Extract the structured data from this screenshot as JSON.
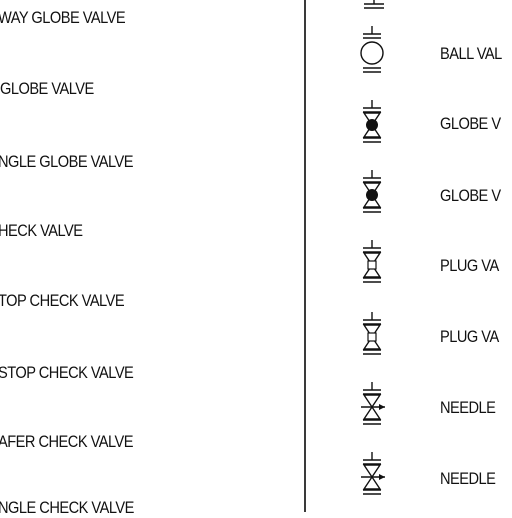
{
  "left_column": {
    "labels": [
      "WAY GLOBE VALVE",
      "GLOBE VALVE",
      "NGLE GLOBE VALVE",
      "HECK VALVE",
      "TOP CHECK VALVE",
      "STOP CHECK VALVE",
      "AFER CHECK VALVE",
      "NGLE CHECK VALVE"
    ]
  },
  "right_column": {
    "labels": [
      "BALL VAL",
      "GLOBE V",
      "GLOBE V",
      "PLUG VA",
      "PLUG VA",
      "NEEDLE",
      "NEEDLE"
    ],
    "symbols": [
      "ball-valve-icon",
      "globe-valve-icon",
      "globe-valve-icon",
      "plug-valve-icon",
      "plug-valve-icon",
      "needle-valve-icon",
      "needle-valve-icon"
    ]
  }
}
